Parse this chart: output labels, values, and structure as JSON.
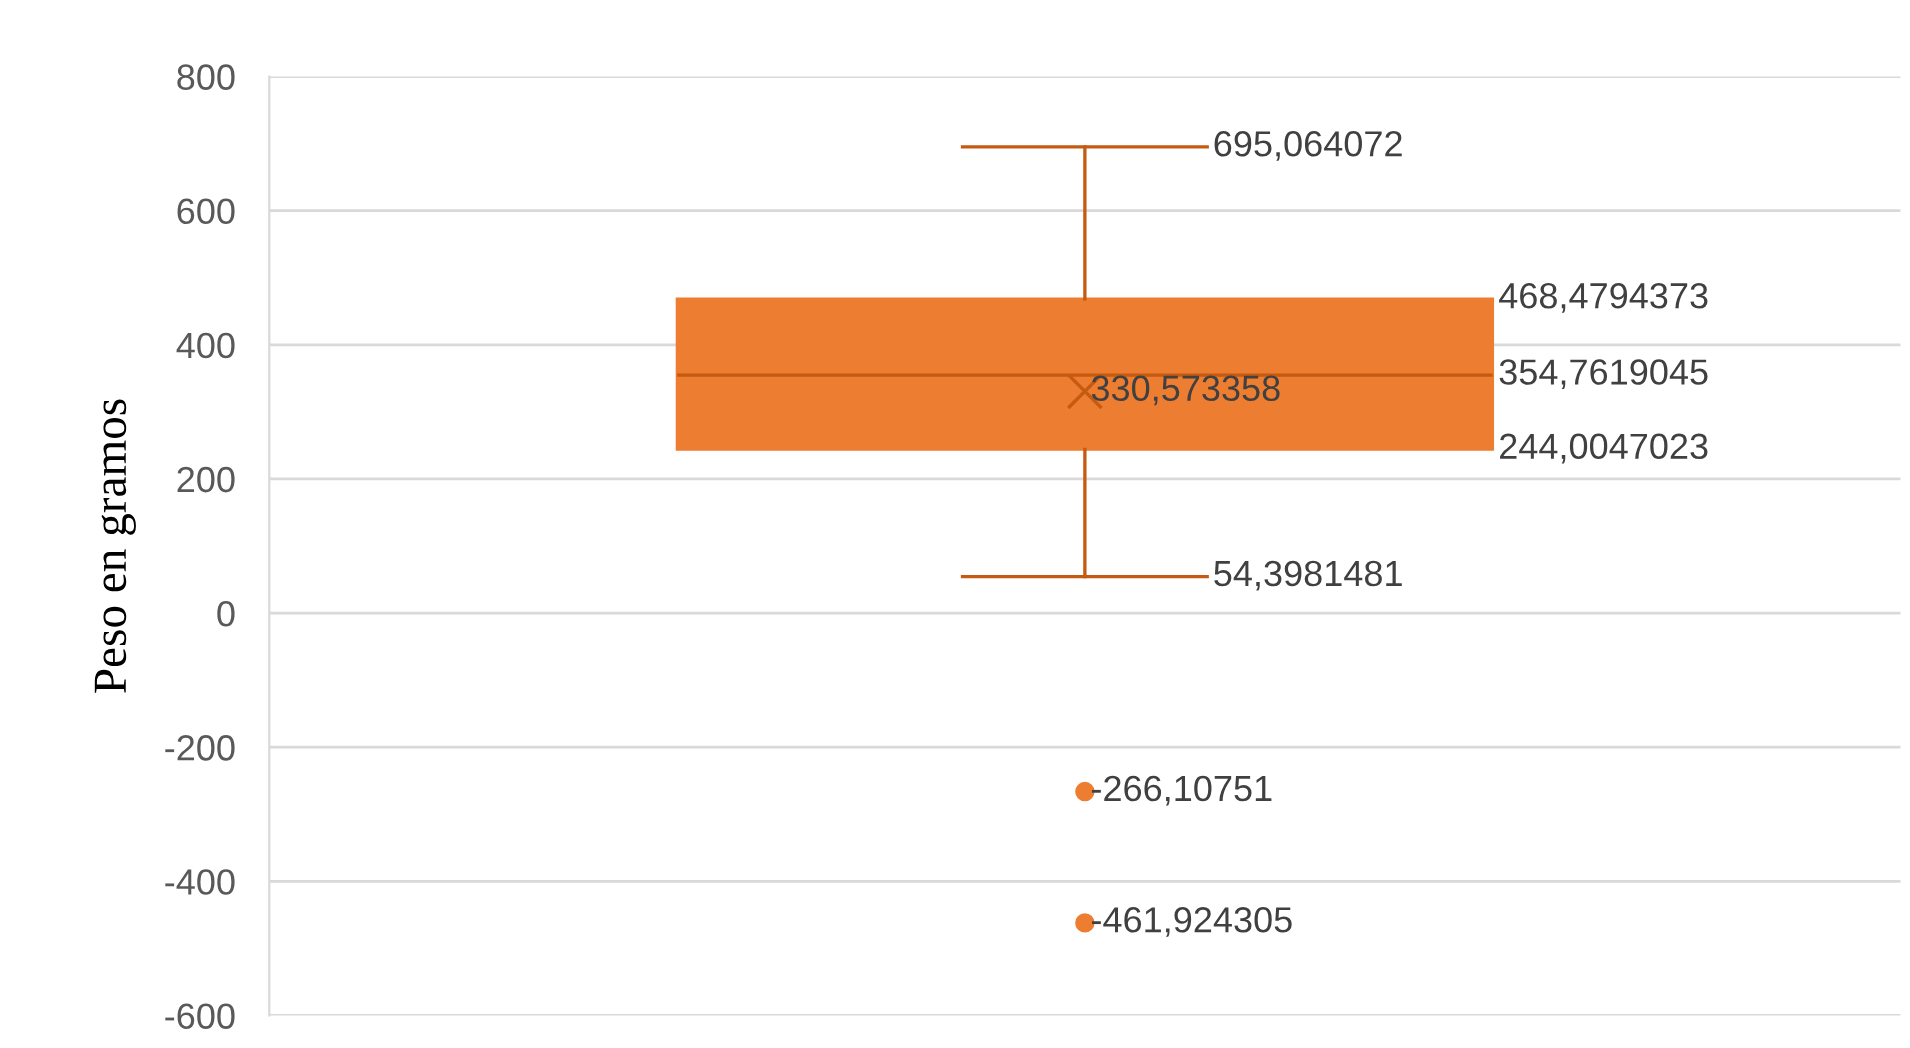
{
  "chart_data": {
    "type": "box",
    "ylabel": "Peso en gramos",
    "categories": [
      null
    ],
    "boxes": [
      {
        "low": 54.3981481,
        "q1": 244.0047023,
        "median": 354.7619045,
        "q3": 468.4794373,
        "high": 695.064072,
        "mean": 330.573358,
        "outliers": [
          -266.10751,
          -461.924305
        ]
      }
    ],
    "color": "#ed7d31",
    "ylim": [
      -600,
      800
    ],
    "yticks": [
      -600,
      -400,
      -200,
      0,
      200,
      400,
      600,
      800
    ],
    "grid": "y",
    "legend": false,
    "annotations": [
      "695,064072",
      "468,4794373",
      "354,7619045",
      "330,573358",
      "244,0047023",
      "54,3981481",
      "-266,10751",
      "-461,924305"
    ]
  }
}
